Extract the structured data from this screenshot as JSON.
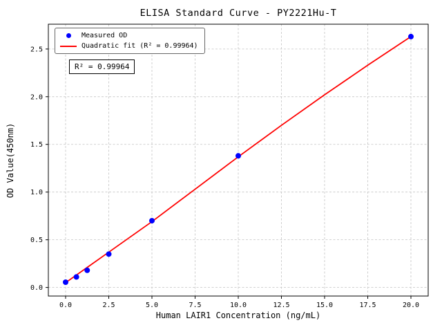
{
  "chart_data": {
    "type": "scatter",
    "title": "ELISA Standard Curve - PY2221Hu-T",
    "xlabel": "Human LAIR1 Concentration (ng/mL)",
    "ylabel": "OD Value(450nm)",
    "xlim": [
      -1,
      21
    ],
    "ylim": [
      -0.09,
      2.76
    ],
    "xticks": [
      0,
      2.5,
      5,
      7.5,
      10,
      12.5,
      15,
      17.5,
      20
    ],
    "yticks": [
      0,
      0.5,
      1,
      1.5,
      2,
      2.5
    ],
    "grid": true,
    "legend_position": "upper-left",
    "annotation": "R² = 0.99964",
    "colors": {
      "scatter": "#0000ff",
      "fit_line": "#ff0000",
      "grid": "#c3c3c3",
      "axis": "#000000"
    },
    "series": [
      {
        "name": "Measured OD",
        "type": "scatter",
        "color": "#0000ff",
        "x": [
          0,
          0.625,
          1.25,
          2.5,
          5,
          10,
          20
        ],
        "y": [
          0.055,
          0.11,
          0.18,
          0.35,
          0.7,
          1.38,
          2.63
        ]
      },
      {
        "name": "Quadratic fit (R² = 0.99964)",
        "type": "line",
        "color": "#ff0000",
        "x": [
          0,
          2.5,
          5,
          7.5,
          10,
          12.5,
          15,
          17.5,
          20
        ],
        "y": [
          0.05,
          0.37,
          0.69,
          1.03,
          1.37,
          1.7,
          2.02,
          2.33,
          2.63
        ]
      }
    ]
  }
}
